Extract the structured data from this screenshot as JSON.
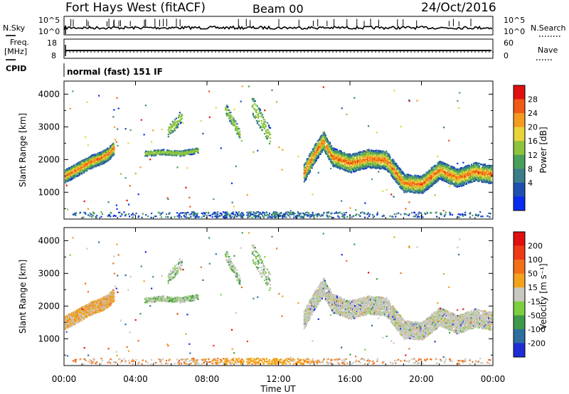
{
  "header": {
    "station": "Fort Hays West (fitACF)",
    "beam": "Beam 00",
    "date": "24/Oct/2016"
  },
  "strip_panels": {
    "noise": {
      "left_label": "N.Sky",
      "right_label": "N.Search",
      "left_ticks": [
        "10^5",
        "10^0"
      ],
      "right_ticks": [
        "10^5",
        "10^0"
      ]
    },
    "freq": {
      "left_label_1": "Freq.",
      "left_label_2": "[MHz]",
      "right_label": "Nave",
      "left_ticks": [
        "18",
        "8"
      ],
      "right_ticks": [
        "60",
        "0"
      ]
    },
    "cpid": {
      "label": "CPID",
      "text": "normal (fast) 151 IF"
    }
  },
  "chart_data": [
    {
      "type": "heatmap",
      "name": "power",
      "ylabel": "Slant Range [km]",
      "xlabel": "Time UT",
      "xlim": [
        0,
        24
      ],
      "ylim": [
        180,
        4400
      ],
      "x_ticks": [
        "00:00",
        "04:00",
        "08:00",
        "12:00",
        "16:00",
        "20:00",
        "00:00"
      ],
      "x_tick_values": [
        0,
        4,
        8,
        12,
        16,
        20,
        24
      ],
      "y_ticks": [
        1000,
        2000,
        3000,
        4000
      ],
      "colorbar": {
        "label": "Power [dB]",
        "ticks": [
          "4",
          "8",
          "12",
          "16",
          "20",
          "24",
          "28"
        ],
        "range": [
          0,
          30
        ],
        "colors": [
          "#0a2cf0",
          "#1f4fb0",
          "#3c7d8a",
          "#4aa05a",
          "#8cc43c",
          "#e8d33a",
          "#f49a1e",
          "#ef5a14",
          "#e01010"
        ]
      },
      "scatter_features": [
        {
          "t": [
            0.0,
            0.5,
            1.0,
            1.5,
            2.0,
            2.5,
            2.8
          ],
          "center_km": [
            1500,
            1650,
            1800,
            1950,
            2050,
            2200,
            2400
          ],
          "width_km": 200
        },
        {
          "t": [
            4.5,
            5.5,
            6.5,
            7.5
          ],
          "center_km": [
            2200,
            2250,
            2200,
            2300
          ],
          "width_km": 80
        },
        {
          "t": [
            5.8,
            6.2,
            6.6
          ],
          "center_km": [
            2900,
            3100,
            3400
          ],
          "width_km": 180
        },
        {
          "t": [
            9.0,
            9.4,
            9.8
          ],
          "center_km": [
            3600,
            3200,
            2800
          ],
          "width_km": 160
        },
        {
          "t": [
            10.5,
            11.0,
            11.5
          ],
          "center_km": [
            3700,
            3200,
            2700
          ],
          "width_km": 300
        },
        {
          "t": [
            13.4,
            14.0,
            14.5,
            15.0,
            16.0,
            17.0,
            18.0,
            19.0,
            20.0,
            21.0,
            22.0,
            23.0,
            24.0
          ],
          "center_km": [
            1600,
            2200,
            2600,
            2100,
            1900,
            2050,
            2000,
            1300,
            1250,
            1700,
            1450,
            1650,
            1550
          ],
          "width_km": 280
        }
      ]
    },
    {
      "type": "heatmap",
      "name": "velocity",
      "ylabel": "Slant Range [km]",
      "xlabel": "Time UT",
      "xlim": [
        0,
        24
      ],
      "ylim": [
        180,
        4400
      ],
      "x_ticks": [
        "00:00",
        "04:00",
        "08:00",
        "12:00",
        "16:00",
        "20:00",
        "00:00"
      ],
      "x_tick_values": [
        0,
        4,
        8,
        12,
        16,
        20,
        24
      ],
      "y_ticks": [
        1000,
        2000,
        3000,
        4000
      ],
      "colorbar": {
        "label": "Velocity [m s⁻¹]",
        "ticks": [
          "200",
          "100",
          "50",
          "15",
          "-15",
          "-50",
          "-100",
          "-200"
        ],
        "colors": [
          "#1e2dd6",
          "#2d6e9e",
          "#3e9a4a",
          "#7bd040",
          "#c8c8c0",
          "#f3a21c",
          "#f2701a",
          "#ee3a16",
          "#e01010"
        ]
      }
    }
  ]
}
